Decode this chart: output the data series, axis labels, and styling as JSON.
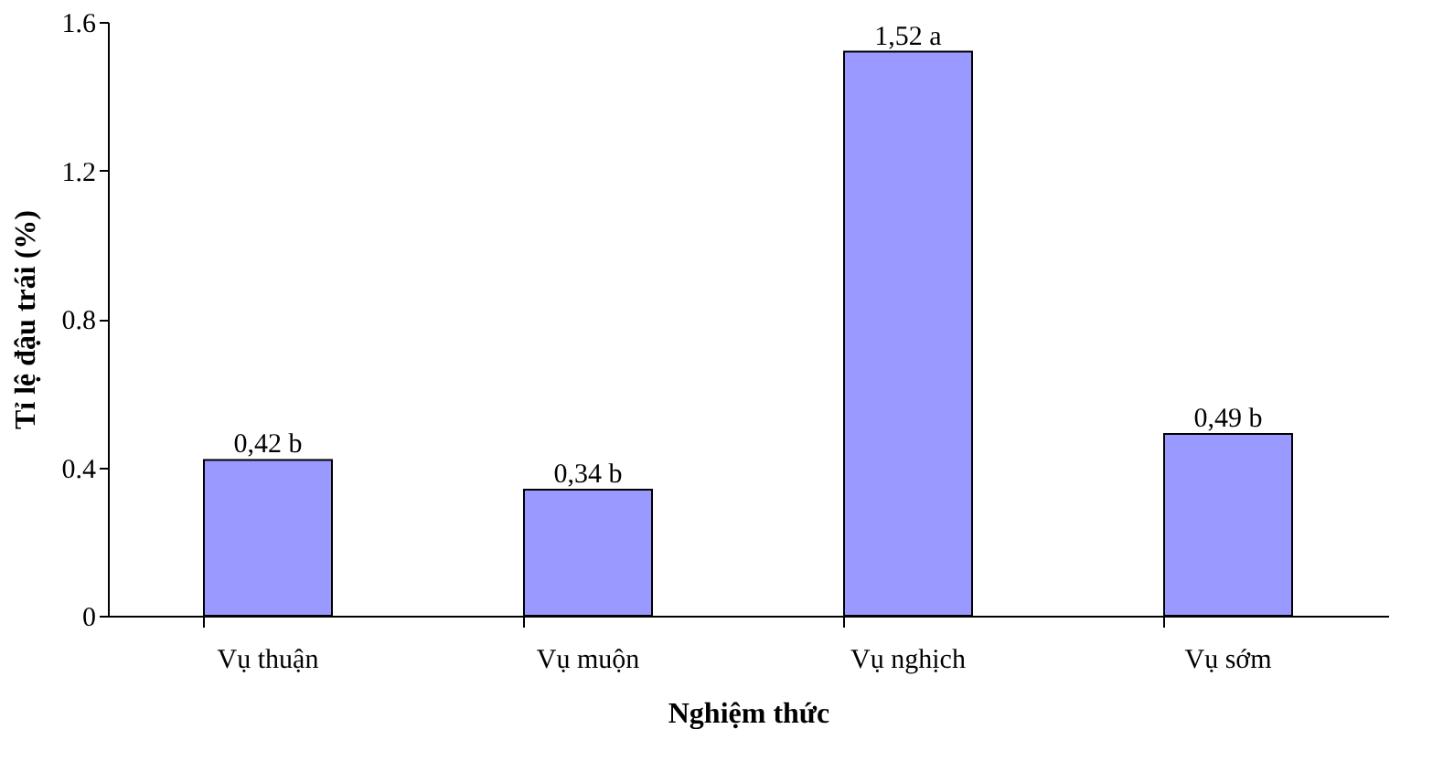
{
  "chart_data": {
    "type": "bar",
    "xlabel": "Nghiệm thức",
    "ylabel": "Tỉ lệ đậu trái (%)",
    "categories": [
      "Vụ thuận",
      "Vụ muộn",
      "Vụ nghịch",
      "Vụ sớm"
    ],
    "values": [
      0.42,
      0.34,
      1.52,
      0.49
    ],
    "value_labels": [
      "0,42 b",
      "0,34 b",
      "1,52 a",
      "0,49 b"
    ],
    "color": "#9999ff",
    "ylim": [
      0,
      1.6
    ],
    "yticks": [
      0,
      0.4,
      0.8,
      1.2,
      1.6
    ],
    "grid": false
  }
}
